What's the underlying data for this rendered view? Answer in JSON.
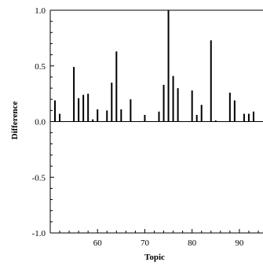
{
  "chart_data": {
    "type": "bar",
    "xlabel": "Topic",
    "ylabel": "Difference",
    "xlim": [
      50,
      95
    ],
    "ylim": [
      -1.0,
      1.0
    ],
    "x_ticks": [
      60,
      70,
      80,
      90
    ],
    "x_tick_labels": [
      "60",
      "70",
      "80",
      "90"
    ],
    "y_ticks": [
      -1.0,
      -0.5,
      0.0,
      0.5,
      1.0
    ],
    "y_tick_labels": [
      "-1.0",
      "-0.5",
      "0.0",
      "0.5",
      "1.0"
    ],
    "grid": false,
    "bar_color": "#000000",
    "x": [
      51,
      52,
      55,
      56,
      57,
      58,
      59,
      60,
      62,
      63,
      64,
      65,
      67,
      70,
      73,
      74,
      75,
      76,
      77,
      80,
      81,
      82,
      84,
      85,
      88,
      89,
      91,
      92,
      93
    ],
    "values": [
      0.19,
      0.07,
      0.49,
      0.21,
      0.24,
      0.25,
      0.02,
      0.11,
      0.1,
      0.35,
      0.63,
      0.11,
      0.2,
      0.06,
      0.09,
      0.33,
      1.0,
      0.41,
      0.3,
      0.28,
      0.06,
      0.15,
      0.73,
      0.01,
      0.26,
      0.19,
      0.07,
      0.07,
      0.09
    ]
  }
}
